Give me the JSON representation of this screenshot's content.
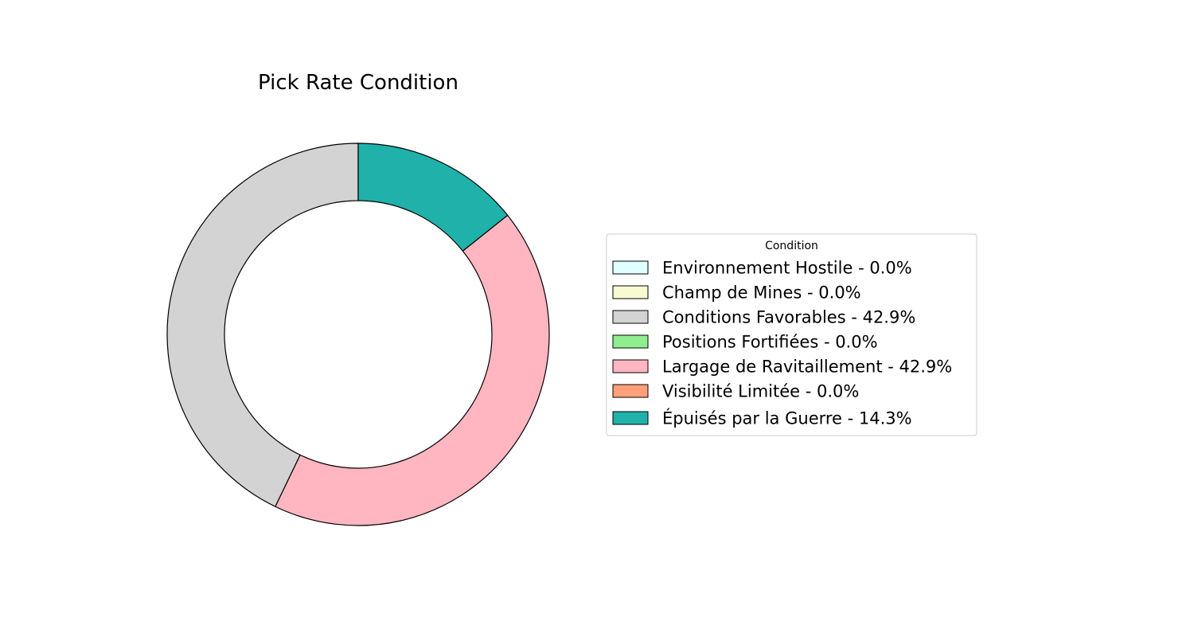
{
  "chart_data": {
    "type": "pie",
    "variant": "donut",
    "title": "Pick Rate Condition",
    "legend": {
      "title": "Condition",
      "placement": "right"
    },
    "start_angle": "top",
    "direction": "counterclockwise",
    "slices": [
      {
        "label": "Environnement Hostile",
        "value": 0.0,
        "legend_text": "Environnement Hostile - 0.0%",
        "color": "#E0FFFF"
      },
      {
        "label": "Champ de Mines",
        "value": 0.0,
        "legend_text": "Champ de Mines - 0.0%",
        "color": "#FAFAD2"
      },
      {
        "label": "Conditions Favorables",
        "value": 42.9,
        "legend_text": "Conditions Favorables - 42.9%",
        "color": "#D3D3D3"
      },
      {
        "label": "Positions Fortifiées",
        "value": 0.0,
        "legend_text": "Positions Fortifiées - 0.0%",
        "color": "#90EE90"
      },
      {
        "label": "Largage de Ravitaillement",
        "value": 42.9,
        "legend_text": "Largage de Ravitaillement - 42.9%",
        "color": "#FFB6C1"
      },
      {
        "label": "Visibilité Limitée",
        "value": 0.0,
        "legend_text": "Visibilité Limitée - 0.0%",
        "color": "#FFA07A"
      },
      {
        "label": "Épuisés par la Guerre",
        "value": 14.3,
        "legend_text": "Épuisés par la Guerre - 14.3%",
        "color": "#20B2AA"
      }
    ]
  }
}
